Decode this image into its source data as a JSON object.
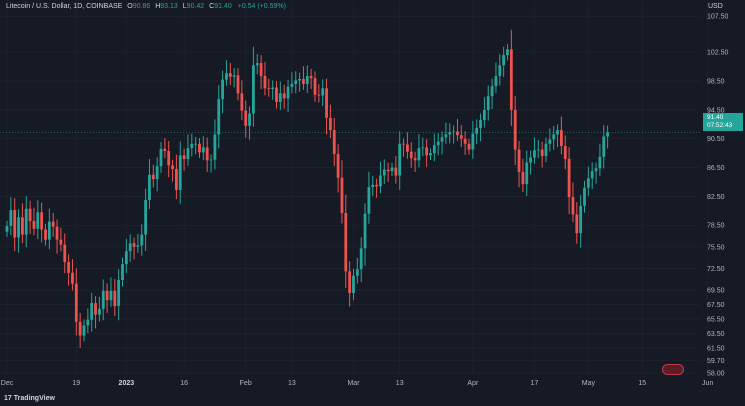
{
  "legend": {
    "symbol": "Litecoin / U.S. Dollar, 1D, COINBASE",
    "o_label": "O",
    "o_value": "90.86",
    "h_label": "H",
    "h_value": "93.13",
    "l_label": "L",
    "l_value": "90.42",
    "c_label": "C",
    "c_value": "91.40",
    "change": "+0.54 (+0.59%)"
  },
  "currency": "USD",
  "last_price": {
    "price": "91.40",
    "countdown": "07:52:43"
  },
  "branding": {
    "name": "TradingView"
  },
  "colors": {
    "up": "#26a69a",
    "down": "#ef5350",
    "background": "#161a25",
    "grid": "#222631"
  },
  "chart_data": {
    "type": "candlestick",
    "title": "Litecoin / U.S. Dollar, 1D, COINBASE",
    "xlabel": "",
    "ylabel": "",
    "ylim": [
      58.0,
      108.5
    ],
    "y_ticks": [
      "107.50",
      "102.50",
      "98.50",
      "94.50",
      "90.50",
      "86.50",
      "82.50",
      "78.50",
      "75.50",
      "72.50",
      "69.50",
      "67.50",
      "65.50",
      "63.50",
      "61.50",
      "59.70",
      "58.00"
    ],
    "y_tick_values": [
      107.5,
      102.5,
      98.5,
      94.5,
      90.5,
      86.5,
      82.5,
      78.5,
      75.5,
      72.5,
      69.5,
      67.5,
      65.5,
      63.5,
      61.5,
      59.7,
      58.0
    ],
    "x_ticks": [
      {
        "label": "Dec",
        "day": 0
      },
      {
        "label": "19",
        "day": 18
      },
      {
        "label": "2023",
        "day": 31,
        "bold": true
      },
      {
        "label": "16",
        "day": 46
      },
      {
        "label": "Feb",
        "day": 62
      },
      {
        "label": "13",
        "day": 74
      },
      {
        "label": "Mar",
        "day": 90
      },
      {
        "label": "13",
        "day": 102
      },
      {
        "label": "Apr",
        "day": 121
      },
      {
        "label": "17",
        "day": 137
      },
      {
        "label": "May",
        "day": 151
      },
      {
        "label": "15",
        "day": 165
      },
      {
        "label": "Jun",
        "day": 182
      }
    ],
    "close": [
      78.4,
      80.6,
      76.8,
      79.6,
      77.2,
      80.8,
      79.1,
      78.0,
      80.3,
      77.9,
      76.5,
      79.0,
      78.3,
      76.5,
      75.8,
      73.4,
      71.9,
      70.4,
      65.1,
      63.2,
      64.6,
      65.4,
      67.7,
      66.1,
      66.9,
      69.4,
      68.1,
      69.4,
      67.3,
      70.9,
      73.1,
      74.9,
      76.0,
      75.5,
      75.7,
      77.2,
      82.0,
      85.5,
      84.9,
      86.7,
      89.1,
      88.8,
      86.8,
      86.3,
      83.4,
      88.2,
      87.7,
      89.2,
      89.8,
      89.8,
      88.6,
      89.3,
      87.5,
      87.6,
      91.1,
      96.0,
      98.7,
      99.6,
      99.1,
      99.3,
      96.8,
      94.4,
      92.3,
      94.0,
      100.7,
      101.0,
      99.2,
      97.5,
      97.4,
      97.6,
      95.6,
      96.8,
      96.1,
      97.7,
      98.1,
      98.6,
      98.8,
      98.1,
      99.2,
      98.9,
      96.6,
      96.5,
      97.5,
      93.4,
      91.7,
      88.4,
      85.1,
      80.2,
      72.1,
      69.1,
      71.5,
      72.4,
      75.3,
      80.1,
      83.8,
      84.1,
      83.9,
      85.4,
      86.2,
      86.0,
      86.5,
      85.4,
      89.8,
      89.7,
      88.7,
      87.8,
      87.5,
      89.2,
      89.3,
      88.2,
      88.5,
      89.6,
      90.1,
      90.7,
      91.1,
      91.4,
      91.5,
      91.0,
      90.5,
      89.8,
      89.0,
      91.2,
      92.0,
      93.1,
      94.5,
      96.4,
      97.8,
      99.2,
      100.7,
      102.1,
      102.9,
      94.5,
      89.0,
      85.9,
      84.2,
      87.2,
      87.9,
      88.9,
      89.0,
      88.1,
      89.8,
      90.4,
      91.1,
      91.7,
      89.5,
      87.7,
      82.4,
      80.0,
      77.4,
      81.2,
      83.7,
      85.0,
      86.0,
      86.4,
      88.0,
      90.8,
      91.4
    ],
    "series": [
      {
        "name": "LTCUSD"
      }
    ]
  }
}
